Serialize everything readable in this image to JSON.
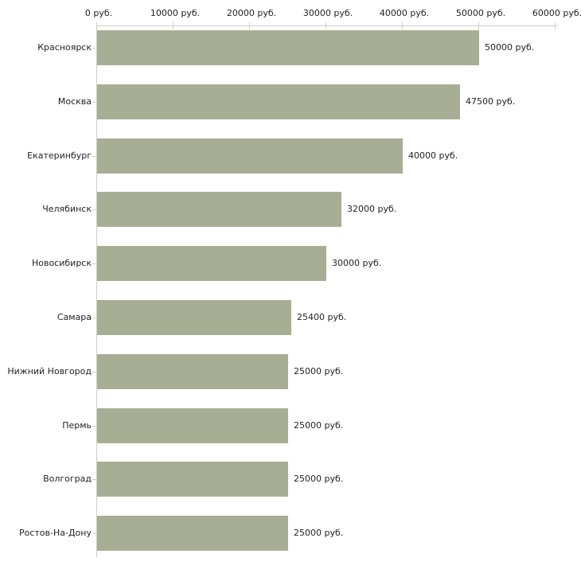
{
  "chart_data": {
    "type": "bar",
    "orientation": "horizontal",
    "title": "",
    "xlabel": "",
    "ylabel": "",
    "xlim": [
      0,
      60000
    ],
    "grid": false,
    "legend": null,
    "categories": [
      "Красноярск",
      "Москва",
      "Екатеринбург",
      "Челябинск",
      "Новосибирск",
      "Самара",
      "Нижний Новгород",
      "Пермь",
      "Волгоград",
      "Ростов-На-Дону"
    ],
    "values": [
      50000,
      47500,
      40000,
      32000,
      30000,
      25400,
      25000,
      25000,
      25000,
      25000
    ],
    "value_labels": [
      "50000 руб.",
      "47500 руб.",
      "40000 руб.",
      "32000 руб.",
      "30000 руб.",
      "25400 руб.",
      "25000 руб.",
      "25000 руб.",
      "25000 руб.",
      "25000 руб."
    ],
    "x_ticks": [
      0,
      10000,
      20000,
      30000,
      40000,
      50000,
      60000
    ],
    "x_tick_labels": [
      "0 руб.",
      "10000 руб.",
      "20000 руб.",
      "30000 руб.",
      "40000 руб.",
      "50000 руб.",
      "60000 руб."
    ],
    "colors": {
      "bar": "#a8ae94",
      "axis": "#cccccc",
      "tick": "#d6d2ae",
      "text": "#222222",
      "background": "#ffffff"
    }
  }
}
